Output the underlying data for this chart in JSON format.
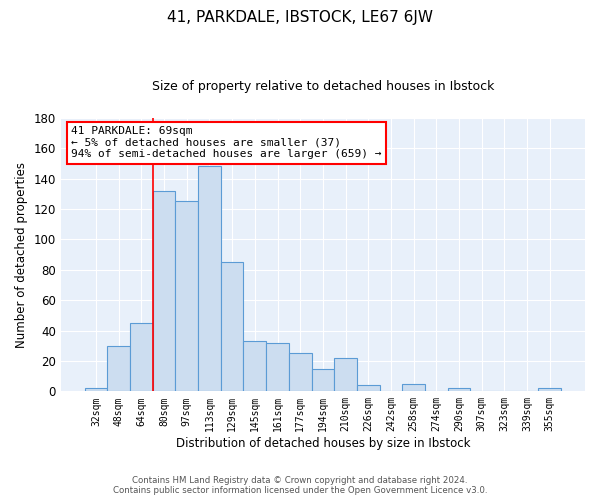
{
  "title1": "41, PARKDALE, IBSTOCK, LE67 6JW",
  "title2": "Size of property relative to detached houses in Ibstock",
  "xlabel": "Distribution of detached houses by size in Ibstock",
  "ylabel": "Number of detached properties",
  "bin_labels": [
    "32sqm",
    "48sqm",
    "64sqm",
    "80sqm",
    "97sqm",
    "113sqm",
    "129sqm",
    "145sqm",
    "161sqm",
    "177sqm",
    "194sqm",
    "210sqm",
    "226sqm",
    "242sqm",
    "258sqm",
    "274sqm",
    "290sqm",
    "307sqm",
    "323sqm",
    "339sqm",
    "355sqm"
  ],
  "bar_heights": [
    2,
    30,
    45,
    132,
    125,
    148,
    85,
    33,
    32,
    25,
    15,
    22,
    4,
    0,
    5,
    0,
    2,
    0,
    0,
    0,
    2
  ],
  "bar_color": "#ccddf0",
  "bar_edge_color": "#5b9bd5",
  "background_color": "#e8f0fa",
  "grid_color": "#ffffff",
  "annotation_line1": "41 PARKDALE: 69sqm",
  "annotation_line2": "← 5% of detached houses are smaller (37)",
  "annotation_line3": "94% of semi-detached houses are larger (659) →",
  "red_line_index": 2.5,
  "ylim": [
    0,
    180
  ],
  "yticks": [
    0,
    20,
    40,
    60,
    80,
    100,
    120,
    140,
    160,
    180
  ],
  "footer_line1": "Contains HM Land Registry data © Crown copyright and database right 2024.",
  "footer_line2": "Contains public sector information licensed under the Open Government Licence v3.0."
}
